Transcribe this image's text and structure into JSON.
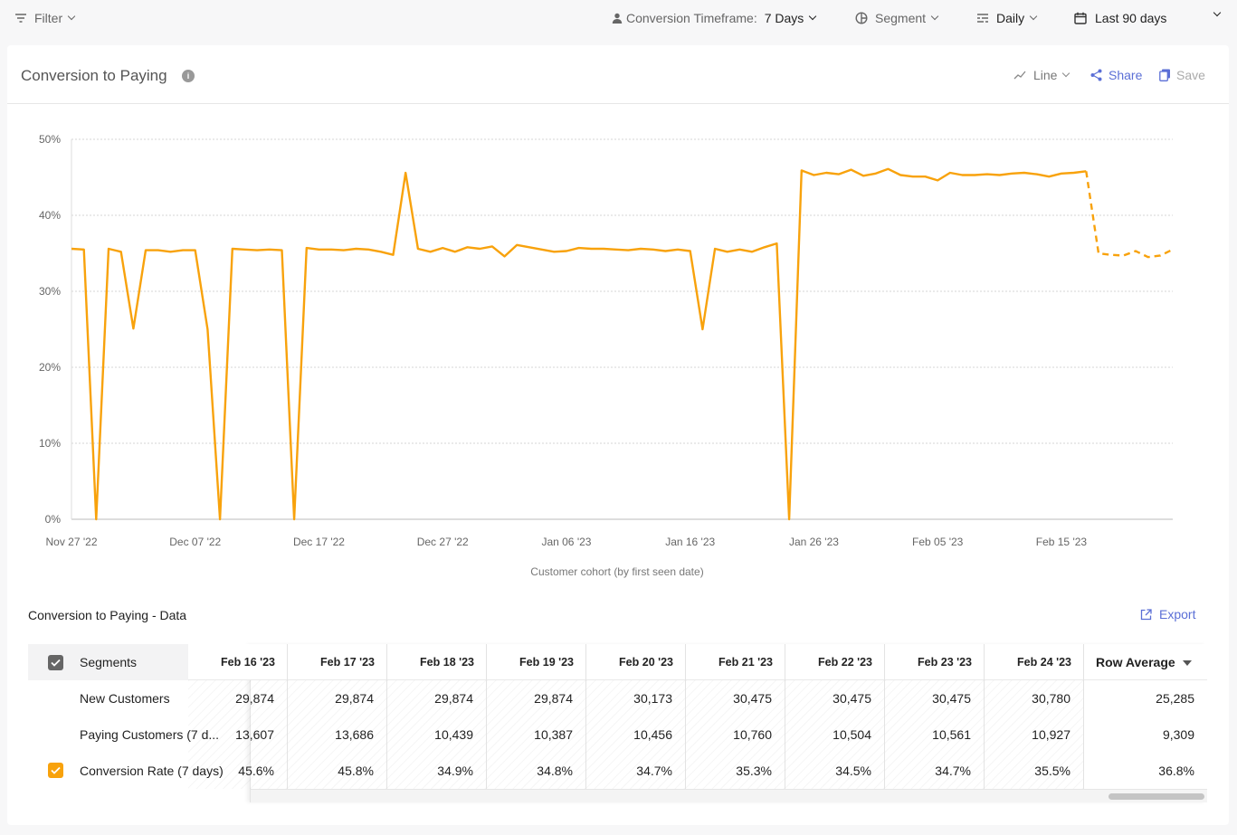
{
  "toolbar": {
    "filter_label": "Filter",
    "timeframe_label": "Conversion Timeframe:",
    "timeframe_value": "7 Days",
    "segment_label": "Segment",
    "interval_label": "Daily",
    "range_label": "Last 90 days"
  },
  "card": {
    "title": "Conversion to Paying",
    "info_glyph": "i",
    "line_label": "Line",
    "share_label": "Share",
    "save_label": "Save"
  },
  "colors": {
    "series": "#f8a20c",
    "accent": "#5b6fd6",
    "checkbox_orange": "#f8a20c",
    "checkbox_gray": "#666666"
  },
  "chart_data": {
    "type": "line",
    "xlabel": "Customer cohort (by first seen date)",
    "ylabel": "",
    "ylim": [
      0,
      50
    ],
    "y_ticks": [
      "0%",
      "10%",
      "20%",
      "30%",
      "40%",
      "50%"
    ],
    "x_start": "Nov 27 '22",
    "x_ticks": [
      "Nov 27 '22",
      "Dec 07 '22",
      "Dec 17 '22",
      "Dec 27 '22",
      "Jan 06 '23",
      "Jan 16 '23",
      "Jan 26 '23",
      "Feb 05 '23",
      "Feb 15 '23"
    ],
    "grid": true,
    "series": [
      {
        "values": [
          35.6,
          35.5,
          0,
          35.6,
          35.2,
          25.1,
          35.4,
          35.4,
          35.2,
          35.4,
          35.4,
          25,
          0,
          35.6,
          35.5,
          35.4,
          35.5,
          35.4,
          0,
          35.7,
          35.5,
          35.5,
          35.4,
          35.6,
          35.5,
          35.2,
          34.8,
          45.6,
          35.6,
          35.2,
          35.7,
          35.2,
          35.8,
          35.6,
          35.9,
          34.6,
          36.1,
          35.8,
          35.5,
          35.2,
          35.3,
          35.7,
          35.6,
          35.6,
          35.5,
          35.4,
          35.6,
          35.5,
          35.3,
          35.5,
          35.3,
          25,
          35.6,
          35.2,
          35.5,
          35.2,
          35.8,
          36.3,
          0,
          45.9,
          45.3,
          45.6,
          45.4,
          46,
          45.2,
          45.5,
          46.1,
          45.3,
          45.1,
          45.1,
          44.6,
          45.6,
          45.3,
          45.3,
          45.4,
          45.3,
          45.5,
          45.6,
          45.4,
          45.1,
          45.5,
          45.6,
          45.8
        ],
        "projected": [
          45.8,
          35,
          34.8,
          34.7,
          35.3,
          34.5,
          34.7,
          35.5
        ]
      }
    ]
  },
  "data_section": {
    "title": "Conversion to Paying - Data",
    "export_label": "Export",
    "segments_header": "Segments",
    "rows": [
      "New Customers",
      "Paying Customers (7 d...",
      "Conversion Rate (7 days)"
    ],
    "columns": [
      {
        "header": "Feb 16 '23",
        "cells": [
          "29,874",
          "13,607",
          "45.6%"
        ]
      },
      {
        "header": "Feb 17 '23",
        "cells": [
          "29,874",
          "13,686",
          "45.8%"
        ]
      },
      {
        "header": "Feb 18 '23",
        "cells": [
          "29,874",
          "10,439",
          "34.9%"
        ]
      },
      {
        "header": "Feb 19 '23",
        "cells": [
          "29,874",
          "10,387",
          "34.8%"
        ]
      },
      {
        "header": "Feb 20 '23",
        "cells": [
          "30,173",
          "10,456",
          "34.7%"
        ]
      },
      {
        "header": "Feb 21 '23",
        "cells": [
          "30,475",
          "10,760",
          "35.3%"
        ]
      },
      {
        "header": "Feb 22 '23",
        "cells": [
          "30,475",
          "10,504",
          "34.5%"
        ]
      },
      {
        "header": "Feb 23 '23",
        "cells": [
          "30,475",
          "10,561",
          "34.7%"
        ]
      },
      {
        "header": "Feb 24 '23",
        "cells": [
          "30,780",
          "10,927",
          "35.5%"
        ]
      }
    ],
    "row_average": {
      "header": "Row Average",
      "cells": [
        "25,285",
        "9,309",
        "36.8%"
      ]
    }
  }
}
